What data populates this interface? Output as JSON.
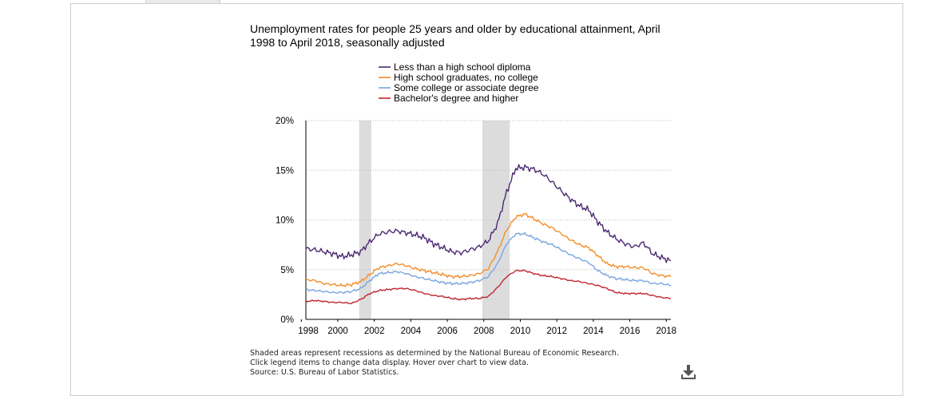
{
  "chart_data": {
    "type": "line",
    "title": "Unemployment rates for people 25 years and older by educational attainment, April 1998 to April 2018, seasonally adjusted",
    "xlabel": "",
    "ylabel": "",
    "xlim": [
      1998.25,
      2018.25
    ],
    "ylim": [
      0,
      20
    ],
    "x_tick_labels": [
      "1998",
      "2000",
      "2002",
      "2004",
      "2006",
      "2008",
      "2010",
      "2012",
      "2014",
      "2016",
      "2018"
    ],
    "x_ticks": [
      1998,
      2000,
      2002,
      2004,
      2006,
      2008,
      2010,
      2012,
      2014,
      2016,
      2018
    ],
    "y_tick_labels": [
      "0%",
      "5%",
      "10%",
      "15%",
      "20%"
    ],
    "y_ticks": [
      0,
      5,
      10,
      15,
      20
    ],
    "grid": "horizontal dotted",
    "legend_position": "top-center",
    "recessions": [
      [
        2001.17,
        2001.83
      ],
      [
        2007.92,
        2009.42
      ]
    ],
    "series": [
      {
        "name": "Less than a high school diploma",
        "color": "#4b2a73",
        "x": [
          1998.25,
          1998.75,
          1999.25,
          1999.75,
          2000.25,
          2000.75,
          2001.25,
          2001.75,
          2002.25,
          2002.75,
          2003.25,
          2003.75,
          2004.25,
          2004.75,
          2005.25,
          2005.75,
          2006.25,
          2006.75,
          2007.25,
          2007.75,
          2008.25,
          2008.75,
          2009.25,
          2009.75,
          2010.25,
          2010.75,
          2011.25,
          2011.75,
          2012.25,
          2012.75,
          2013.25,
          2013.75,
          2014.25,
          2014.75,
          2015.25,
          2015.75,
          2016.25,
          2016.75,
          2017.25,
          2017.75,
          2018.25
        ],
        "y": [
          7.1,
          7.0,
          6.8,
          6.6,
          6.3,
          6.5,
          6.8,
          7.8,
          8.6,
          8.8,
          8.9,
          8.7,
          8.5,
          8.2,
          7.6,
          7.2,
          6.8,
          6.7,
          7.0,
          7.3,
          7.9,
          9.6,
          12.8,
          15.2,
          15.3,
          15.1,
          14.6,
          13.8,
          12.9,
          12.1,
          11.4,
          11.0,
          9.8,
          8.8,
          8.1,
          7.6,
          7.3,
          7.7,
          6.6,
          6.2,
          5.9
        ]
      },
      {
        "name": "High school graduates, no college",
        "color": "#f28e2b",
        "x": [
          1998.25,
          1998.75,
          1999.25,
          1999.75,
          2000.25,
          2000.75,
          2001.25,
          2001.75,
          2002.25,
          2002.75,
          2003.25,
          2003.75,
          2004.25,
          2004.75,
          2005.25,
          2005.75,
          2006.25,
          2006.75,
          2007.25,
          2007.75,
          2008.25,
          2008.75,
          2009.25,
          2009.75,
          2010.25,
          2010.75,
          2011.25,
          2011.75,
          2012.25,
          2012.75,
          2013.25,
          2013.75,
          2014.25,
          2014.75,
          2015.25,
          2015.75,
          2016.25,
          2016.75,
          2017.25,
          2017.75,
          2018.25
        ],
        "y": [
          4.0,
          3.9,
          3.6,
          3.5,
          3.4,
          3.5,
          3.8,
          4.5,
          5.2,
          5.4,
          5.6,
          5.4,
          5.1,
          4.9,
          4.7,
          4.5,
          4.3,
          4.3,
          4.4,
          4.6,
          5.1,
          6.8,
          9.0,
          10.3,
          10.6,
          10.1,
          9.6,
          9.2,
          8.6,
          8.0,
          7.5,
          7.2,
          6.4,
          5.6,
          5.3,
          5.3,
          5.2,
          5.2,
          4.6,
          4.4,
          4.3
        ]
      },
      {
        "name": "Some college or associate degree",
        "color": "#7aa6e0",
        "x": [
          1998.25,
          1998.75,
          1999.25,
          1999.75,
          2000.25,
          2000.75,
          2001.25,
          2001.75,
          2002.25,
          2002.75,
          2003.25,
          2003.75,
          2004.25,
          2004.75,
          2005.25,
          2005.75,
          2006.25,
          2006.75,
          2007.25,
          2007.75,
          2008.25,
          2008.75,
          2009.25,
          2009.75,
          2010.25,
          2010.75,
          2011.25,
          2011.75,
          2012.25,
          2012.75,
          2013.25,
          2013.75,
          2014.25,
          2014.75,
          2015.25,
          2015.75,
          2016.25,
          2016.75,
          2017.25,
          2017.75,
          2018.25
        ],
        "y": [
          3.0,
          2.9,
          2.8,
          2.7,
          2.7,
          2.8,
          3.1,
          3.9,
          4.6,
          4.7,
          4.8,
          4.6,
          4.3,
          4.1,
          3.9,
          3.7,
          3.6,
          3.6,
          3.7,
          3.9,
          4.3,
          5.6,
          7.6,
          8.6,
          8.6,
          8.2,
          7.8,
          7.5,
          7.0,
          6.5,
          6.1,
          5.7,
          4.9,
          4.4,
          4.1,
          4.0,
          3.9,
          3.9,
          3.6,
          3.6,
          3.4
        ]
      },
      {
        "name": "Bachelor's degree and higher",
        "color": "#c1272d",
        "x": [
          1998.25,
          1998.75,
          1999.25,
          1999.75,
          2000.25,
          2000.75,
          2001.25,
          2001.75,
          2002.25,
          2002.75,
          2003.25,
          2003.75,
          2004.25,
          2004.75,
          2005.25,
          2005.75,
          2006.25,
          2006.75,
          2007.25,
          2007.75,
          2008.25,
          2008.75,
          2009.25,
          2009.75,
          2010.25,
          2010.75,
          2011.25,
          2011.75,
          2012.25,
          2012.75,
          2013.25,
          2013.75,
          2014.25,
          2014.75,
          2015.25,
          2015.75,
          2016.25,
          2016.75,
          2017.25,
          2017.75,
          2018.25
        ],
        "y": [
          1.8,
          1.9,
          1.8,
          1.7,
          1.7,
          1.6,
          2.0,
          2.6,
          2.9,
          3.0,
          3.1,
          3.1,
          2.9,
          2.6,
          2.4,
          2.3,
          2.1,
          2.0,
          2.1,
          2.1,
          2.3,
          3.2,
          4.3,
          4.9,
          4.9,
          4.6,
          4.4,
          4.3,
          4.1,
          3.9,
          3.8,
          3.6,
          3.4,
          3.1,
          2.7,
          2.6,
          2.6,
          2.6,
          2.4,
          2.2,
          2.1
        ]
      }
    ]
  },
  "notes": {
    "line1": "Shaded areas represent recessions as determined by the National Bureau of Economic Research.",
    "line2": "Click legend items to change data display. Hover over chart to view data.",
    "line3": "Source: U.S. Bureau of Labor Statistics."
  },
  "icons": {
    "download": "download-icon"
  }
}
